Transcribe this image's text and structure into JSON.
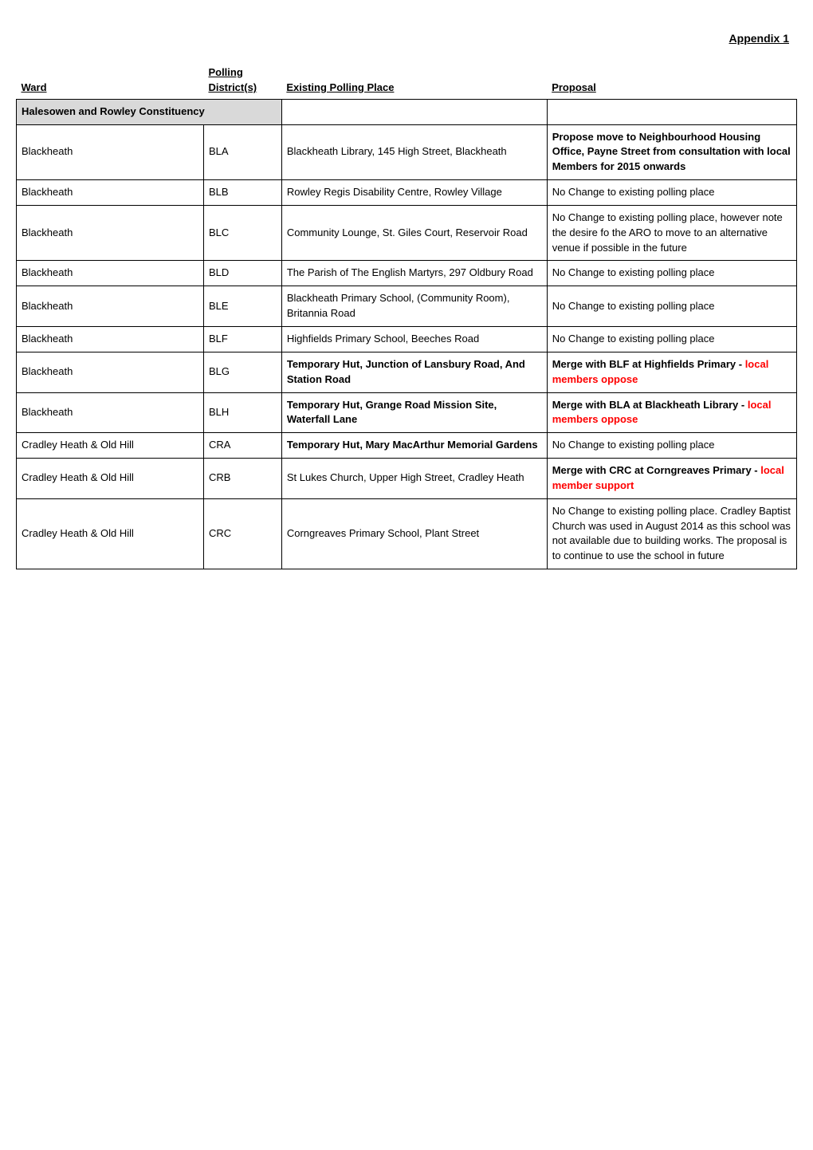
{
  "appendix": "Appendix 1",
  "headers": {
    "ward": "Ward",
    "polling": "Polling",
    "district": "District(s)",
    "existing": "Existing Polling Place",
    "proposal": "Proposal"
  },
  "constituency": "Halesowen and Rowley Constituency",
  "rows": [
    {
      "ward": "Blackheath",
      "district": "BLA",
      "existing": "Blackheath Library, 145 High Street, Blackheath",
      "proposal": "Propose move to Neighbourhood Housing Office, Payne Street from consultation with local Members  for 2015 onwards",
      "proposal_bold": true
    },
    {
      "ward": "Blackheath",
      "district": "BLB",
      "existing": "Rowley Regis Disability Centre, Rowley Village",
      "proposal": "No Change to existing polling place"
    },
    {
      "ward": "Blackheath",
      "district": "BLC",
      "existing": "Community Lounge, St. Giles Court, Reservoir Road",
      "proposal": "No Change to existing polling place, however note the desire fo the ARO to move to an alternative venue if possible in the future"
    },
    {
      "ward": "Blackheath",
      "district": "BLD",
      "existing": "The Parish of The English Martyrs, 297 Oldbury Road",
      "proposal": "No Change to existing polling place"
    },
    {
      "ward": "Blackheath",
      "district": "BLE",
      "existing": "Blackheath Primary School, (Community Room), Britannia Road",
      "proposal": "No Change to existing polling place"
    },
    {
      "ward": "Blackheath",
      "district": "BLF",
      "existing": "Highfields Primary School, Beeches Road",
      "proposal": "No Change to existing polling place"
    },
    {
      "ward": "Blackheath",
      "district": "BLG",
      "existing": "Temporary Hut, Junction of Lansbury Road, And Station Road",
      "existing_bold": true,
      "proposal_pre": "Merge with BLF at Highfields Primary - ",
      "proposal_local": "local members oppose",
      "proposal_bold": true
    },
    {
      "ward": "Blackheath",
      "district": "BLH",
      "existing": "Temporary Hut, Grange Road Mission Site, Waterfall Lane",
      "existing_bold": true,
      "proposal_pre": "Merge with BLA at Blackheath Library - ",
      "proposal_local": "local members oppose",
      "proposal_bold": true
    },
    {
      "ward": "Cradley Heath & Old Hill",
      "district": "CRA",
      "existing": "Temporary Hut, Mary MacArthur Memorial Gardens",
      "existing_bold": true,
      "proposal": "No Change to existing polling place"
    },
    {
      "ward": "Cradley Heath & Old Hill",
      "district": "CRB",
      "existing": "St Lukes Church, Upper High Street, Cradley Heath",
      "proposal_pre": "Merge with CRC at Corngreaves Primary - ",
      "proposal_local": "local member support",
      "proposal_bold": true
    },
    {
      "ward": "Cradley Heath & Old Hill",
      "district": "CRC",
      "existing": "Corngreaves Primary School, Plant Street",
      "proposal": "No Change to existing polling place. Cradley Baptist Church was used in August 2014 as this school was not available due to building works. The proposal is to continue to use the school in future"
    }
  ]
}
